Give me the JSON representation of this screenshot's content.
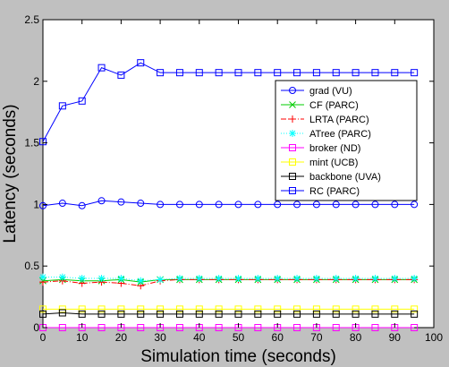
{
  "chart_data": {
    "type": "line",
    "title": "",
    "xlabel": "Simulation time (seconds)",
    "ylabel": "Latency (seconds)",
    "xlim": [
      0,
      100
    ],
    "ylim": [
      0,
      2.5
    ],
    "xticks": [
      0,
      10,
      20,
      30,
      40,
      50,
      60,
      70,
      80,
      90,
      100
    ],
    "yticks": [
      0,
      0.5,
      1,
      1.5,
      2,
      2.5
    ],
    "ytick_labels": [
      "0",
      "0.5",
      "1",
      "1.5",
      "2",
      "2.5"
    ],
    "grid": false,
    "legend_position": "top-right",
    "x": [
      0,
      5,
      10,
      15,
      20,
      25,
      30,
      35,
      40,
      45,
      50,
      55,
      60,
      65,
      70,
      75,
      80,
      85,
      90,
      95
    ],
    "series": [
      {
        "name": "grad (VU)",
        "color": "#0000ff",
        "marker": "circle",
        "dash": "solid",
        "values": [
          0.99,
          1.01,
          0.99,
          1.03,
          1.02,
          1.01,
          1.0,
          1.0,
          1.0,
          1.0,
          1.0,
          1.0,
          1.0,
          1.0,
          1.0,
          1.0,
          1.0,
          1.0,
          1.0,
          1.0
        ]
      },
      {
        "name": "CF (PARC)",
        "color": "#00cc00",
        "marker": "x",
        "dash": "solid",
        "values": [
          0.38,
          0.39,
          0.38,
          0.38,
          0.39,
          0.37,
          0.39,
          0.39,
          0.39,
          0.39,
          0.39,
          0.39,
          0.39,
          0.39,
          0.39,
          0.39,
          0.39,
          0.39,
          0.39,
          0.39
        ]
      },
      {
        "name": "LRTA (PARC)",
        "color": "#ff0000",
        "marker": "plus",
        "dash": "dashdot",
        "values": [
          0.37,
          0.38,
          0.36,
          0.37,
          0.36,
          0.34,
          0.38,
          0.39,
          0.39,
          0.39,
          0.39,
          0.39,
          0.39,
          0.39,
          0.39,
          0.39,
          0.39,
          0.39,
          0.39,
          0.39
        ]
      },
      {
        "name": "ATree (PARC)",
        "color": "#00ffff",
        "marker": "star",
        "dash": "dotted",
        "values": [
          0.41,
          0.41,
          0.4,
          0.4,
          0.4,
          0.38,
          0.39,
          0.4,
          0.4,
          0.4,
          0.4,
          0.4,
          0.4,
          0.4,
          0.4,
          0.4,
          0.4,
          0.4,
          0.4,
          0.4
        ]
      },
      {
        "name": "broker (ND)",
        "color": "#ff00ff",
        "marker": "square",
        "dash": "solid",
        "values": [
          0.0,
          0.0,
          0.0,
          0.0,
          0.0,
          0.0,
          0.0,
          0.0,
          0.0,
          0.0,
          0.0,
          0.0,
          0.0,
          0.0,
          0.0,
          0.0,
          0.0,
          0.0,
          0.0,
          0.0
        ]
      },
      {
        "name": "mint (UCB)",
        "color": "#ffff00",
        "marker": "square",
        "dash": "solid",
        "values": [
          0.15,
          0.15,
          0.15,
          0.15,
          0.15,
          0.15,
          0.15,
          0.15,
          0.15,
          0.15,
          0.15,
          0.15,
          0.15,
          0.15,
          0.15,
          0.15,
          0.15,
          0.15,
          0.15,
          0.15
        ]
      },
      {
        "name": "backbone (UVA)",
        "color": "#000000",
        "marker": "square",
        "dash": "solid",
        "values": [
          0.11,
          0.12,
          0.11,
          0.11,
          0.11,
          0.11,
          0.11,
          0.11,
          0.11,
          0.11,
          0.11,
          0.11,
          0.11,
          0.11,
          0.11,
          0.11,
          0.11,
          0.11,
          0.11,
          0.11
        ]
      },
      {
        "name": "RC (PARC)",
        "color": "#0000ff",
        "marker": "square",
        "dash": "solid",
        "values": [
          1.51,
          1.8,
          1.84,
          2.11,
          2.05,
          2.15,
          2.07,
          2.07,
          2.07,
          2.07,
          2.07,
          2.07,
          2.07,
          2.07,
          2.07,
          2.07,
          2.07,
          2.07,
          2.07,
          2.07
        ]
      }
    ]
  }
}
